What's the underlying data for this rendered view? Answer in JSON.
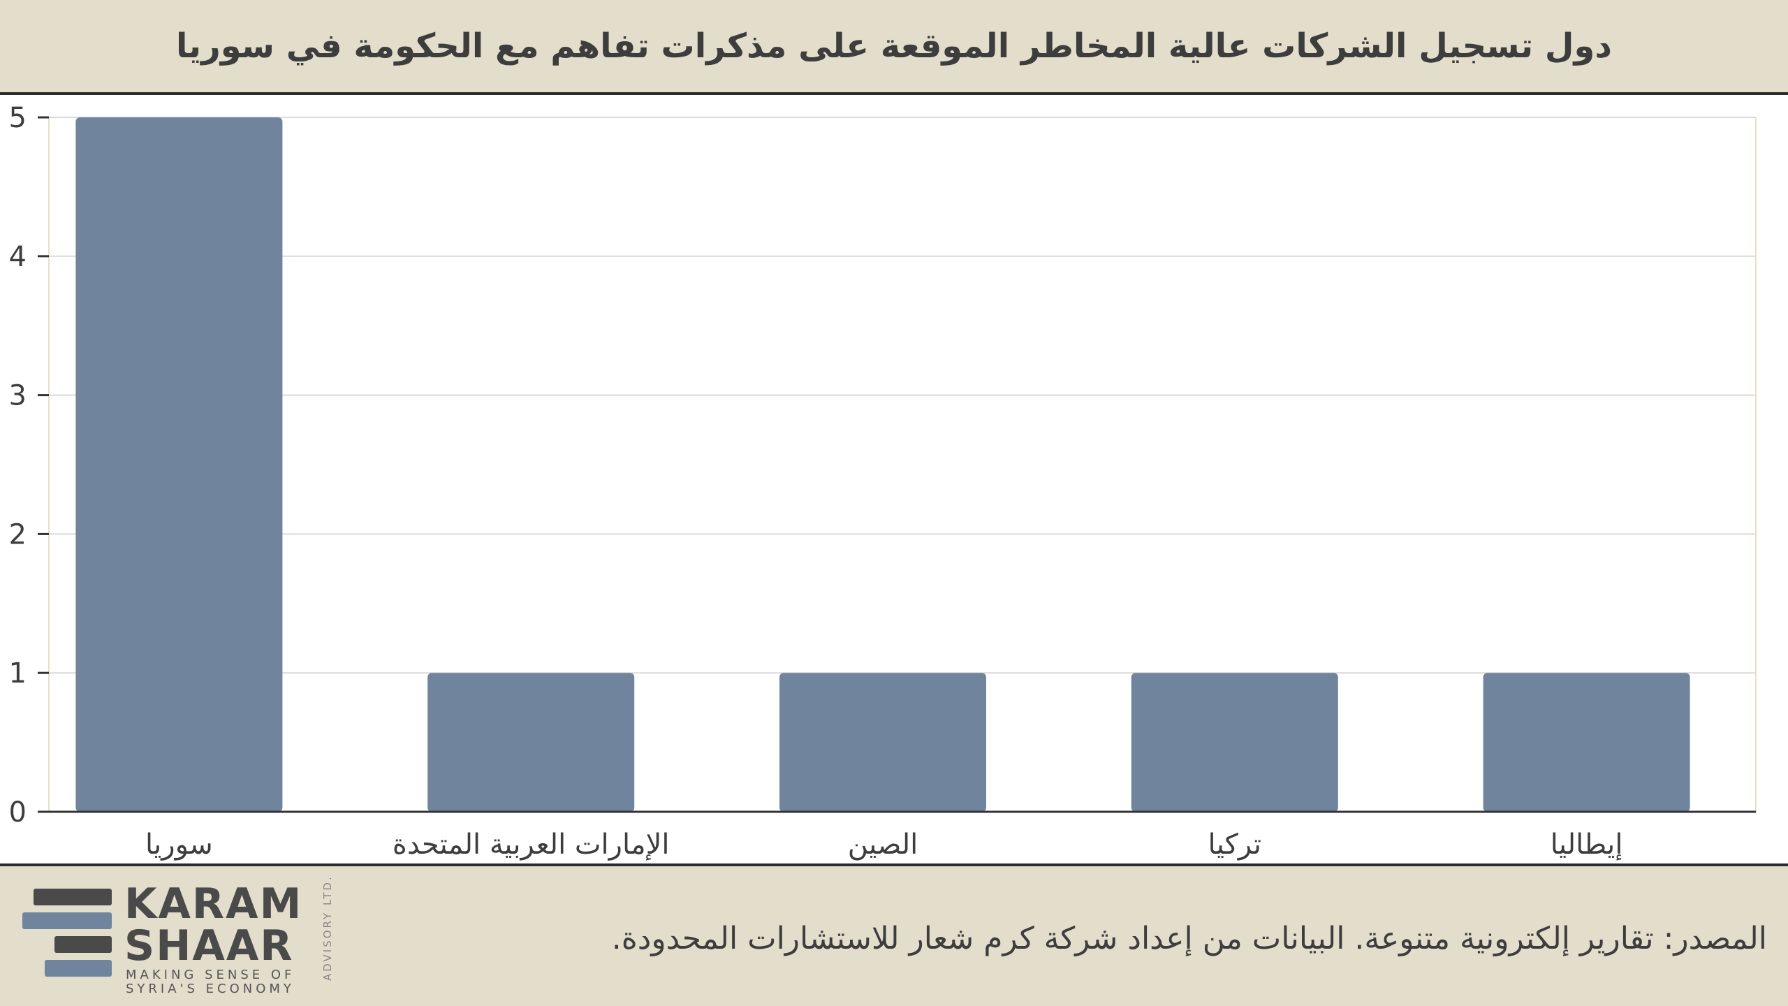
{
  "header": {
    "title": "دول تسجيل الشركات عالية المخاطر الموقعة على مذكرات تفاهم مع الحكومة في سوريا"
  },
  "chart_data": {
    "type": "bar",
    "categories": [
      "سوريا",
      "الإمارات العربية المتحدة",
      "الصين",
      "تركيا",
      "إيطاليا"
    ],
    "values": [
      5,
      1,
      1,
      1,
      1
    ],
    "ylim": [
      0,
      5
    ],
    "yticks": [
      0,
      1,
      2,
      3,
      4,
      5
    ],
    "xlabel": "",
    "ylabel": "",
    "grid": true,
    "bar_color": "#71849e"
  },
  "footer": {
    "source": "المصدر: تقارير إلكترونية متنوعة. البيانات من إعداد شركة كرم شعار للاستشارات المحدودة.",
    "logo": {
      "line1": "KARAM",
      "line2": "SHAAR",
      "tagline1": "MAKING SENSE OF",
      "tagline2": "SYRIA'S ECONOMY",
      "side": "ADVISORY LTD."
    }
  }
}
